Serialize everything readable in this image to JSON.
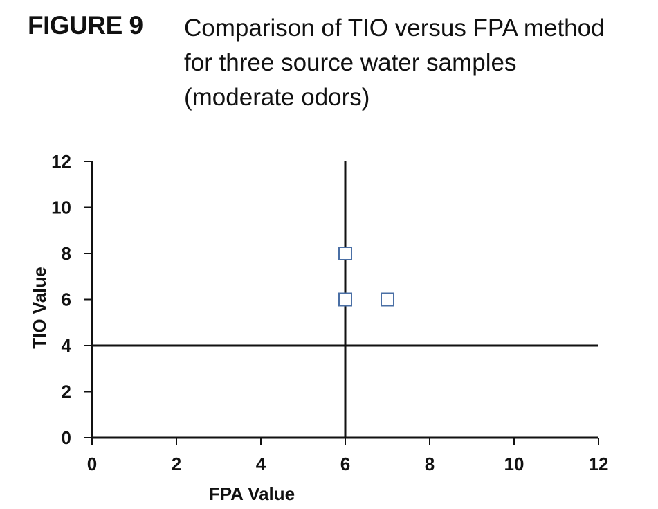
{
  "figure": {
    "label": "FIGURE 9",
    "caption_lines": [
      "Comparison of TIO versus FPA method",
      "for three source water samples",
      "(moderate odors)"
    ]
  },
  "chart_data": {
    "type": "scatter",
    "title": "",
    "xlabel": "FPA Value",
    "ylabel": "TIO Value",
    "xlim": [
      0,
      12
    ],
    "ylim": [
      0,
      12
    ],
    "xticks": [
      0,
      2,
      4,
      6,
      8,
      10,
      12
    ],
    "yticks": [
      0,
      2,
      4,
      6,
      8,
      10,
      12
    ],
    "grid": false,
    "legend": "none",
    "series": [
      {
        "marker": "open-square",
        "color": "#4a6fa5",
        "points": [
          {
            "x": 6,
            "y": 8
          },
          {
            "x": 6,
            "y": 6
          },
          {
            "x": 7,
            "y": 6
          }
        ]
      }
    ],
    "reference_lines": [
      {
        "orientation": "vertical",
        "x": 6
      },
      {
        "orientation": "horizontal",
        "y": 4
      }
    ]
  }
}
